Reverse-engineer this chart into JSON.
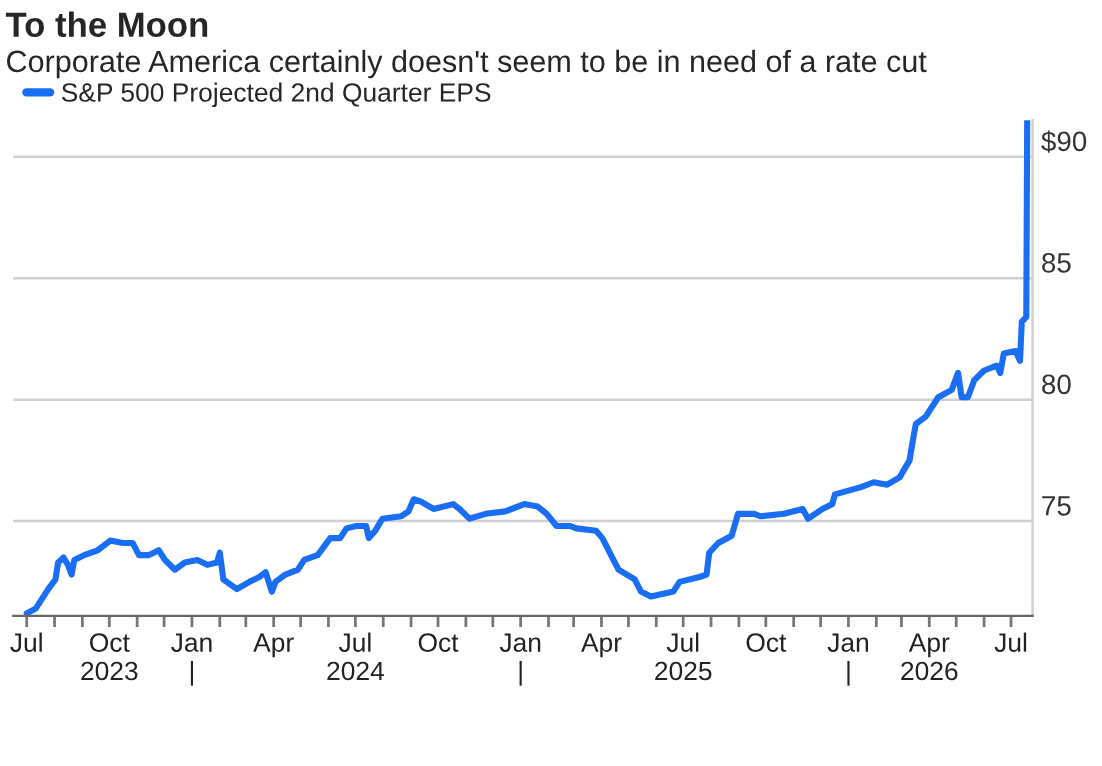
{
  "chart_data": {
    "type": "line",
    "title": "To the Moon",
    "subtitle": "Corporate America certainly doesn't seem to be in need of a rate cut",
    "series": [
      {
        "name": "S&P 500 Projected 2nd Quarter EPS",
        "color": "#1a6ef5",
        "x": [
          "2023-07-01",
          "2023-07-11",
          "2023-07-18",
          "2023-07-25",
          "2023-08-02",
          "2023-08-05",
          "2023-08-11",
          "2023-08-16",
          "2023-08-20",
          "2023-08-23",
          "2023-09-03",
          "2023-09-18",
          "2023-10-02",
          "2023-10-16",
          "2023-10-27",
          "2023-11-03",
          "2023-11-14",
          "2023-11-25",
          "2023-12-02",
          "2023-12-13",
          "2023-12-24",
          "2024-01-07",
          "2024-01-18",
          "2024-01-29",
          "2024-02-01",
          "2024-02-05",
          "2024-02-20",
          "2024-03-05",
          "2024-03-16",
          "2024-03-23",
          "2024-03-30",
          "2024-04-03",
          "2024-04-14",
          "2024-04-28",
          "2024-05-05",
          "2024-05-20",
          "2024-06-03",
          "2024-06-14",
          "2024-06-21",
          "2024-07-02",
          "2024-07-13",
          "2024-07-16",
          "2024-07-23",
          "2024-07-31",
          "2024-08-21",
          "2024-08-29",
          "2024-09-04",
          "2024-09-12",
          "2024-09-26",
          "2024-10-18",
          "2024-10-25",
          "2024-11-05",
          "2024-11-23",
          "2024-12-15",
          "2025-01-05",
          "2025-01-20",
          "2025-01-30",
          "2025-02-10",
          "2025-02-25",
          "2025-03-04",
          "2025-03-26",
          "2025-04-02",
          "2025-04-13",
          "2025-04-20",
          "2025-05-08",
          "2025-05-15",
          "2025-05-26",
          "2025-06-20",
          "2025-06-27",
          "2025-07-19",
          "2025-07-27",
          "2025-07-30",
          "2025-08-09",
          "2025-08-24",
          "2025-08-31",
          "2025-09-18",
          "2025-09-25",
          "2025-10-21",
          "2025-11-11",
          "2025-11-17",
          "2025-12-03",
          "2025-12-14",
          "2025-12-17",
          "2026-01-15",
          "2026-01-29",
          "2026-02-13",
          "2026-02-27",
          "2026-03-10",
          "2026-03-15",
          "2026-03-17",
          "2026-03-28",
          "2026-04-11",
          "2026-04-26",
          "2026-05-03",
          "2026-05-07",
          "2026-05-14",
          "2026-05-21",
          "2026-06-01",
          "2026-06-15",
          "2026-06-19",
          "2026-06-23",
          "2026-07-06",
          "2026-07-11",
          "2026-07-13",
          "2026-07-18",
          "2026-07-19"
        ],
        "values": [
          71.2,
          71.4,
          71.8,
          72.2,
          72.6,
          73.3,
          73.5,
          73.2,
          72.8,
          73.4,
          73.6,
          73.8,
          74.2,
          74.1,
          74.1,
          73.6,
          73.6,
          73.8,
          73.4,
          73.0,
          73.3,
          73.4,
          73.2,
          73.3,
          73.7,
          72.6,
          72.2,
          72.5,
          72.7,
          72.9,
          72.1,
          72.5,
          72.8,
          73.0,
          73.4,
          73.6,
          74.3,
          74.3,
          74.7,
          74.8,
          74.8,
          74.3,
          74.6,
          75.1,
          75.2,
          75.4,
          75.9,
          75.8,
          75.5,
          75.7,
          75.5,
          75.1,
          75.3,
          75.4,
          75.7,
          75.6,
          75.3,
          74.8,
          74.8,
          74.7,
          74.6,
          74.3,
          73.5,
          73.0,
          72.6,
          72.1,
          71.9,
          72.1,
          72.5,
          72.7,
          72.8,
          73.7,
          74.1,
          74.4,
          75.3,
          75.3,
          75.2,
          75.3,
          75.5,
          75.1,
          75.5,
          75.7,
          76.1,
          76.4,
          76.6,
          76.5,
          76.8,
          77.5,
          78.6,
          79.0,
          79.3,
          80.1,
          80.4,
          81.1,
          80.1,
          80.1,
          80.8,
          81.2,
          81.4,
          81.1,
          81.9,
          82.0,
          81.6,
          83.2,
          83.4,
          91.5
        ]
      }
    ],
    "xlim": [
      "2023-06-16",
      "2026-07-25"
    ],
    "xticks": [
      {
        "value": "2023-07-01",
        "label": "Jul"
      },
      {
        "value": "2023-08-01",
        "label": null
      },
      {
        "value": "2023-09-01",
        "label": null
      },
      {
        "value": "2023-10-01",
        "label": "Oct\n2023"
      },
      {
        "value": "2023-11-01",
        "label": null
      },
      {
        "value": "2023-12-01",
        "label": null
      },
      {
        "value": "2024-01-01",
        "label": "Jan\n|"
      },
      {
        "value": "2024-02-01",
        "label": null
      },
      {
        "value": "2024-03-01",
        "label": null
      },
      {
        "value": "2024-04-01",
        "label": "Apr"
      },
      {
        "value": "2024-05-01",
        "label": null
      },
      {
        "value": "2024-06-01",
        "label": null
      },
      {
        "value": "2024-07-01",
        "label": "Jul\n2024"
      },
      {
        "value": "2024-08-01",
        "label": null
      },
      {
        "value": "2024-09-01",
        "label": null
      },
      {
        "value": "2024-10-01",
        "label": "Oct"
      },
      {
        "value": "2024-11-01",
        "label": null
      },
      {
        "value": "2024-12-01",
        "label": null
      },
      {
        "value": "2025-01-01",
        "label": "Jan\n|"
      },
      {
        "value": "2025-02-01",
        "label": null
      },
      {
        "value": "2025-03-01",
        "label": null
      },
      {
        "value": "2025-04-01",
        "label": "Apr"
      },
      {
        "value": "2025-05-01",
        "label": null
      },
      {
        "value": "2025-06-01",
        "label": null
      },
      {
        "value": "2025-07-01",
        "label": "Jul\n2025"
      },
      {
        "value": "2025-08-01",
        "label": null
      },
      {
        "value": "2025-09-01",
        "label": null
      },
      {
        "value": "2025-10-01",
        "label": "Oct"
      },
      {
        "value": "2025-11-01",
        "label": null
      },
      {
        "value": "2025-12-01",
        "label": null
      },
      {
        "value": "2026-01-01",
        "label": "Jan\n|"
      },
      {
        "value": "2026-02-01",
        "label": null
      },
      {
        "value": "2026-03-01",
        "label": null
      },
      {
        "value": "2026-04-01",
        "label": "Apr\n2026"
      },
      {
        "value": "2026-05-01",
        "label": null
      },
      {
        "value": "2026-06-01",
        "label": null
      },
      {
        "value": "2026-07-01",
        "label": "Jul"
      }
    ],
    "ylim": [
      71.1,
      91.5
    ],
    "yticks": [
      75,
      80,
      85,
      {
        "value": 90,
        "label": "$90"
      }
    ],
    "grid": "y",
    "legend": "top left",
    "marker": "none",
    "line_style": "solid"
  }
}
